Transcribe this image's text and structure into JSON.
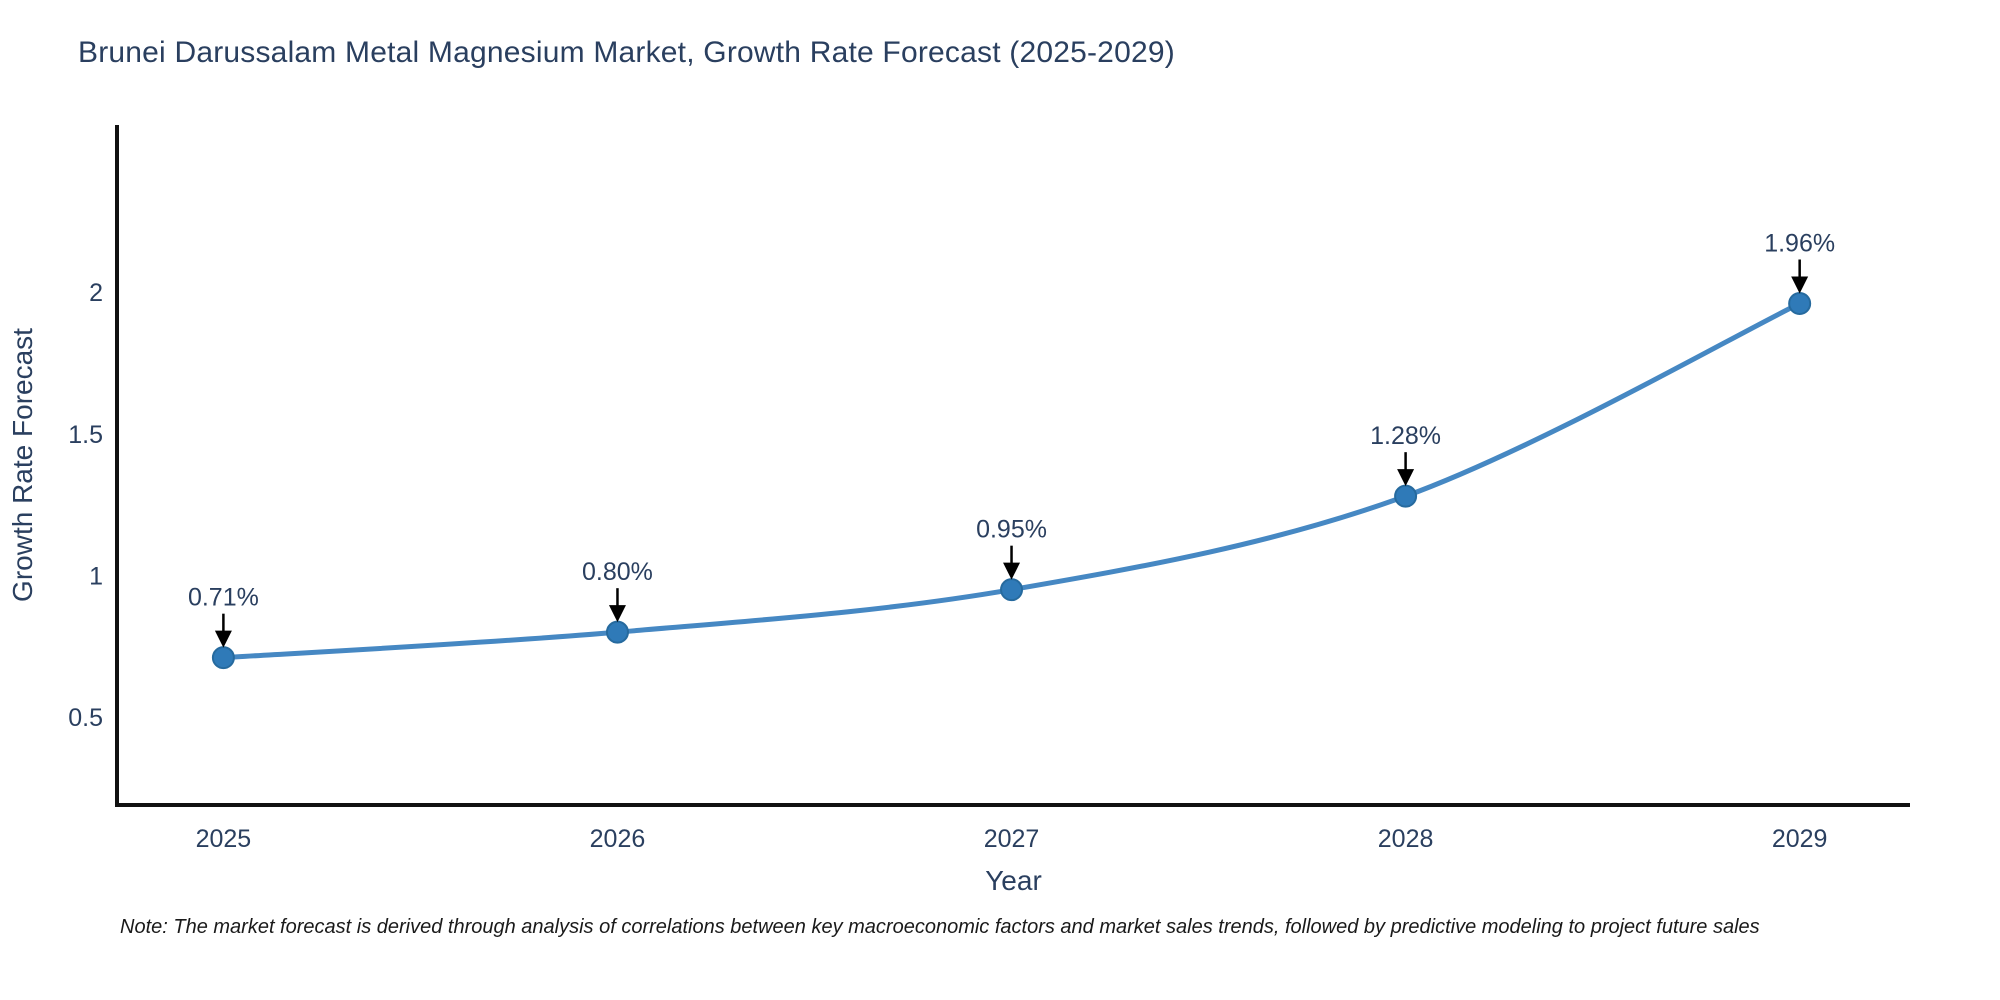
{
  "note": "Note: The market forecast is derived through analysis of correlations between key macroeconomic factors and market sales trends, followed by predictive modeling to project future sales",
  "chart_data": {
    "type": "line",
    "title": "Brunei Darussalam Metal Magnesium Market, Growth Rate Forecast (2025-2029)",
    "xlabel": "Year",
    "ylabel": "Growth Rate Forecast",
    "x": [
      2025,
      2026,
      2027,
      2028,
      2029
    ],
    "values": [
      0.71,
      0.8,
      0.95,
      1.28,
      1.96
    ],
    "point_labels": [
      "0.71%",
      "0.80%",
      "0.95%",
      "1.28%",
      "1.96%"
    ],
    "xticks": [
      2025,
      2026,
      2027,
      2028,
      2029
    ],
    "xtick_labels": [
      "2025",
      "2026",
      "2027",
      "2028",
      "2029"
    ],
    "yticks": [
      0.5,
      1.0,
      1.5,
      2.0
    ],
    "ytick_labels": [
      "0.5",
      "1",
      "1.5",
      "2"
    ],
    "xlim": [
      2024.73,
      2029.28
    ],
    "ylim": [
      0.19,
      2.59
    ],
    "grid": false,
    "legend": false,
    "colors": {
      "line": "#4688c3",
      "marker": "#2f7ab8",
      "marker_edge": "#266a9e",
      "arrow": "#000000",
      "text": "#2a3f5f",
      "axis": "#111111"
    }
  }
}
